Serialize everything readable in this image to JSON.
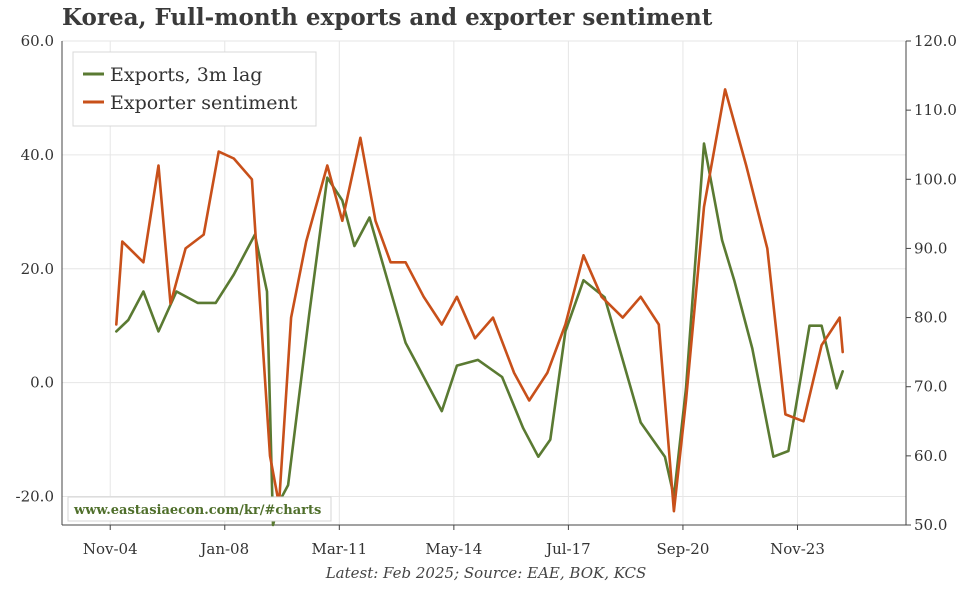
{
  "title": "Korea, Full-month exports and exporter sentiment",
  "source_note": "Latest: Feb 2025; Source: EAE, BOK, KCS",
  "watermark": "www.eastasiaecon.com/kr/#charts",
  "colors": {
    "exports": "#5a7a32",
    "sentiment": "#c8501a",
    "grid": "#e6e6e6",
    "watermark": "#4f6f2b"
  },
  "chart_data": {
    "type": "line",
    "x_tick_labels": [
      "Nov-04",
      "Jan-08",
      "Mar-11",
      "May-14",
      "Jul-17",
      "Sep-20",
      "Nov-23"
    ],
    "x_range": [
      "Jul-03",
      "Nov-26"
    ],
    "y_left": {
      "range": [
        -25,
        60
      ],
      "ticks": [
        "-20.0",
        "0.0",
        "20.0",
        "40.0",
        "60.0"
      ]
    },
    "y_right": {
      "range": [
        50,
        120
      ],
      "ticks": [
        "50.0",
        "60.0",
        "70.0",
        "80.0",
        "90.0",
        "100.0",
        "110.0",
        "120.0"
      ]
    },
    "grid": true,
    "legend_position": "top-left",
    "series": [
      {
        "name": "Exports, 3m lag",
        "axis": "left",
        "color": "#5a7a32",
        "points": [
          [
            "Jan-05",
            9
          ],
          [
            "May-05",
            11
          ],
          [
            "Oct-05",
            16
          ],
          [
            "Mar-06",
            9
          ],
          [
            "Sep-06",
            16
          ],
          [
            "Apr-07",
            14
          ],
          [
            "Oct-07",
            14
          ],
          [
            "Apr-08",
            19
          ],
          [
            "Nov-08",
            26
          ],
          [
            "Mar-09",
            16
          ],
          [
            "May-09",
            -25
          ],
          [
            "Jul-09",
            -21
          ],
          [
            "Oct-09",
            -18
          ],
          [
            "May-10",
            12
          ],
          [
            "Nov-10",
            36
          ],
          [
            "Apr-11",
            32
          ],
          [
            "Aug-11",
            24
          ],
          [
            "Jan-12",
            29
          ],
          [
            "Jul-12",
            18
          ],
          [
            "Jan-13",
            7
          ],
          [
            "Apr-13",
            4
          ],
          [
            "Sep-13",
            -1
          ],
          [
            "Jan-14",
            -5
          ],
          [
            "Jun-14",
            3
          ],
          [
            "Jan-15",
            4
          ],
          [
            "Sep-15",
            1
          ],
          [
            "Apr-16",
            -8
          ],
          [
            "Sep-16",
            -13
          ],
          [
            "Jan-17",
            -10
          ],
          [
            "Jun-17",
            9
          ],
          [
            "Dec-17",
            18
          ],
          [
            "Jul-18",
            15
          ],
          [
            "Jan-19",
            4
          ],
          [
            "Jul-19",
            -7
          ],
          [
            "Mar-20",
            -13
          ],
          [
            "Jun-20",
            -20
          ],
          [
            "Oct-20",
            -1
          ],
          [
            "Apr-21",
            42
          ],
          [
            "Oct-21",
            25
          ],
          [
            "Feb-22",
            18
          ],
          [
            "Aug-22",
            6
          ],
          [
            "Mar-23",
            -13
          ],
          [
            "Aug-23",
            -12
          ],
          [
            "Mar-24",
            10
          ],
          [
            "Jul-24",
            10
          ],
          [
            "Dec-24",
            -1
          ],
          [
            "Feb-25",
            2
          ]
        ]
      },
      {
        "name": "Exporter sentiment",
        "axis": "right",
        "color": "#c8501a",
        "points": [
          [
            "Jan-05",
            79
          ],
          [
            "Mar-05",
            91
          ],
          [
            "Oct-05",
            88
          ],
          [
            "Mar-06",
            102
          ],
          [
            "Jul-06",
            82
          ],
          [
            "Dec-06",
            90
          ],
          [
            "Jun-07",
            92
          ],
          [
            "Nov-07",
            104
          ],
          [
            "Apr-08",
            103
          ],
          [
            "Oct-08",
            100
          ],
          [
            "Apr-09",
            60
          ],
          [
            "Jul-09",
            53
          ],
          [
            "Nov-09",
            80
          ],
          [
            "Apr-10",
            91
          ],
          [
            "Nov-10",
            102
          ],
          [
            "Apr-11",
            94
          ],
          [
            "Oct-11",
            106
          ],
          [
            "Mar-12",
            94
          ],
          [
            "Aug-12",
            88
          ],
          [
            "Jan-13",
            88
          ],
          [
            "Jul-13",
            83
          ],
          [
            "Jan-14",
            79
          ],
          [
            "Jun-14",
            83
          ],
          [
            "Dec-14",
            77
          ],
          [
            "Jun-15",
            80
          ],
          [
            "Jan-16",
            72
          ],
          [
            "Jun-16",
            68
          ],
          [
            "Dec-16",
            72
          ],
          [
            "Jun-17",
            79
          ],
          [
            "Dec-17",
            89
          ],
          [
            "Jun-18",
            83
          ],
          [
            "Jan-19",
            80
          ],
          [
            "Jul-19",
            83
          ],
          [
            "Jan-20",
            79
          ],
          [
            "Jun-20",
            52
          ],
          [
            "Oct-20",
            68
          ],
          [
            "Apr-21",
            96
          ],
          [
            "Nov-21",
            113
          ],
          [
            "Jun-22",
            102
          ],
          [
            "Jan-23",
            90
          ],
          [
            "Jul-23",
            66
          ],
          [
            "Jan-24",
            65
          ],
          [
            "Jul-24",
            76
          ],
          [
            "Jan-25",
            80
          ],
          [
            "Feb-25",
            75
          ]
        ]
      }
    ]
  }
}
